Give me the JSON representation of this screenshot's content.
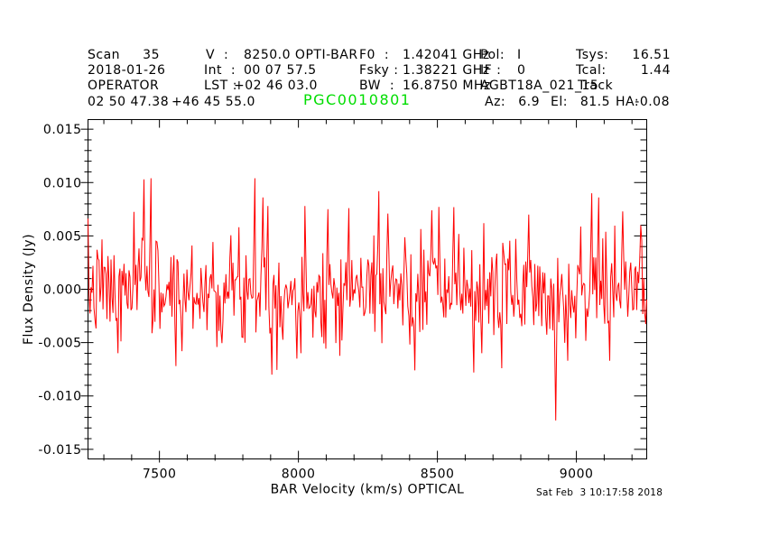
{
  "header": {
    "row1": {
      "scan_label": "Scan",
      "scan_value": "35",
      "v_label": "V  :",
      "v_value": "8250.0 OPTI-BAR",
      "f0_label": "F0  :",
      "f0_value": "1.42041 GHz",
      "pol_label": "Pol:",
      "pol_value": "I",
      "tsys_label": "Tsys:",
      "tsys_value": "16.51"
    },
    "row2": {
      "date": "2018-01-26",
      "int_label": "Int  :",
      "int_value": "00 07 57.5",
      "fsky_label": "Fsky :",
      "fsky_value": "1.38221 GHz",
      "if_label": "IF :",
      "if_value": "0",
      "tcal_label": "Tcal:",
      "tcal_value": "1.44"
    },
    "row3": {
      "observer": "OPERATOR",
      "lst_label": "LST :",
      "lst_value": "+02 46 03.0",
      "bw_label": "BW  :",
      "bw_value": "16.8750 MHz",
      "project": "AGBT18A_021_15",
      "procedure": "Track"
    },
    "row4": {
      "ra": "02 50 47.38",
      "dec": "+46 45 55.0",
      "az_label": "Az:",
      "az_value": "6.9",
      "el_label": "El:",
      "el_value": "81.5",
      "ha_label": "HA:",
      "ha_value": "-0.08"
    }
  },
  "footer": {
    "timestamp": "Sat Feb  3 10:17:58 2018"
  },
  "chart_data": {
    "type": "line",
    "title": "PGC0010801",
    "title_color": "#00dd00",
    "xlabel": "BAR Velocity (km/s) OPTICAL",
    "ylabel": "Flux Density (Jy)",
    "xlim": [
      7243,
      9253
    ],
    "ylim": [
      -0.0159,
      0.0159
    ],
    "x_major_ticks": [
      7500,
      8000,
      8500,
      9000
    ],
    "x_minor_step": 100,
    "y_major_ticks": [
      -0.015,
      -0.01,
      -0.005,
      0.0,
      0.005,
      0.01,
      0.015
    ],
    "y_minor_step": 0.001,
    "grid": false,
    "legend": "none",
    "line_color": "#ff0000",
    "axis_color": "#000000",
    "description": "Baseline-subtracted noise spectrum centered near 0 Jy, rms about 0.0024 Jy, no detected line",
    "n_points": 560,
    "noise_sigma": 0.0024,
    "noise_clamp": 0.0078,
    "noise_seed": 7,
    "baseline": 0.0,
    "features": [
      {
        "x": 7350,
        "y": -0.006
      },
      {
        "x": 7443,
        "y": 0.0103
      },
      {
        "x": 7468,
        "y": 0.0104
      },
      {
        "x": 7560,
        "y": -0.0072
      },
      {
        "x": 7580,
        "y": -0.0058
      },
      {
        "x": 7845,
        "y": 0.0104
      },
      {
        "x": 7872,
        "y": 0.0086
      },
      {
        "x": 7890,
        "y": 0.0078
      },
      {
        "x": 7905,
        "y": -0.008
      },
      {
        "x": 7995,
        "y": -0.0065
      },
      {
        "x": 8010,
        "y": -0.006
      },
      {
        "x": 8105,
        "y": 0.0075
      },
      {
        "x": 8180,
        "y": 0.0076
      },
      {
        "x": 8290,
        "y": 0.0092
      },
      {
        "x": 8320,
        "y": 0.0071
      },
      {
        "x": 8420,
        "y": -0.0076
      },
      {
        "x": 8480,
        "y": 0.0074
      },
      {
        "x": 8560,
        "y": 0.0077
      },
      {
        "x": 8630,
        "y": -0.0078
      },
      {
        "x": 8660,
        "y": -0.006
      },
      {
        "x": 8730,
        "y": -0.0074
      },
      {
        "x": 8830,
        "y": 0.007
      },
      {
        "x": 8925,
        "y": -0.0123
      },
      {
        "x": 8970,
        "y": -0.0067
      },
      {
        "x": 9055,
        "y": 0.009
      },
      {
        "x": 9080,
        "y": 0.0086
      },
      {
        "x": 9120,
        "y": -0.0067
      },
      {
        "x": 9165,
        "y": 0.0073
      },
      {
        "x": 9230,
        "y": 0.006
      }
    ]
  }
}
